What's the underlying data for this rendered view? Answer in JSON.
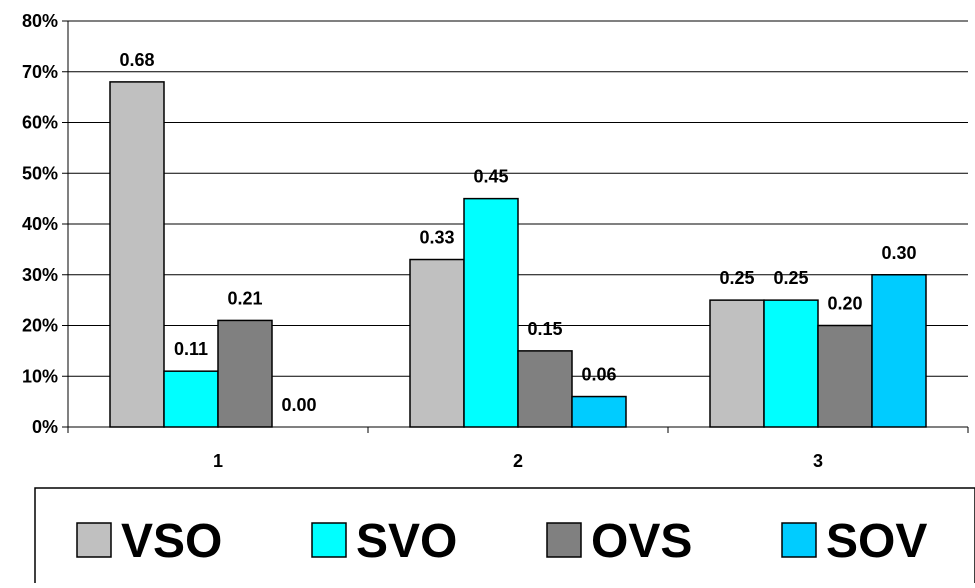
{
  "chart_data": {
    "type": "bar",
    "categories": [
      "1",
      "2",
      "3"
    ],
    "series": [
      {
        "name": "VSO",
        "values": [
          0.68,
          0.33,
          0.25
        ],
        "labels": [
          "0.68",
          "0.33",
          "0.25"
        ]
      },
      {
        "name": "SVO",
        "values": [
          0.11,
          0.45,
          0.25
        ],
        "labels": [
          "0.11",
          "0.45",
          "0.25"
        ]
      },
      {
        "name": "OVS",
        "values": [
          0.21,
          0.15,
          0.2
        ],
        "labels": [
          "0.21",
          "0.15",
          "0.20"
        ]
      },
      {
        "name": "SOV",
        "values": [
          0.0,
          0.06,
          0.3
        ],
        "labels": [
          "0.00",
          "0.06",
          "0.30"
        ]
      }
    ],
    "colors": [
      "#c0c0c0",
      "#00ffff",
      "#808080",
      "#00ccff"
    ],
    "yticks": [
      "0%",
      "10%",
      "20%",
      "30%",
      "40%",
      "50%",
      "60%",
      "70%",
      "80%"
    ],
    "ylim": [
      0,
      0.8
    ],
    "grid": true,
    "legend_position": "bottom",
    "title": "",
    "xlabel": "",
    "ylabel": ""
  }
}
